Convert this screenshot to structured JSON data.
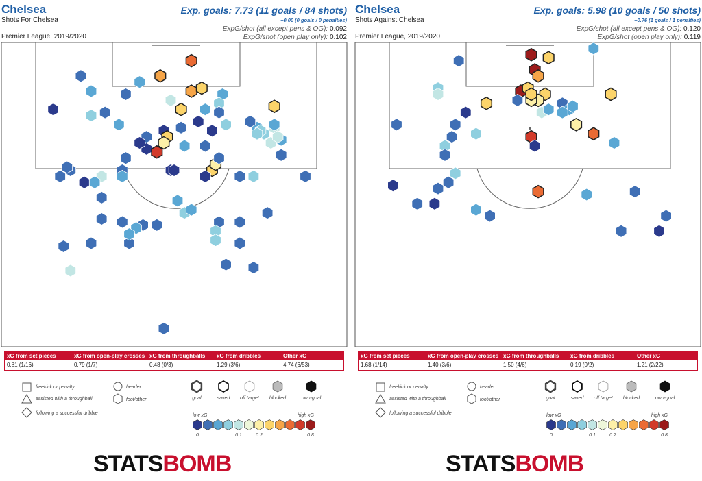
{
  "panels": [
    {
      "team": "Chelsea",
      "subtitle": "Shots For Chelsea",
      "competition": "Premier League, 2019/2020",
      "xg_title": "Exp. goals: 7.73 (11 goals / 84 shots)",
      "xg_sub": "+0.00 (0 goals / 0 penalties)",
      "line1_label": "ExpG/shot (all except pens & OG):",
      "line1_value": "0.092",
      "line2_label": "ExpG/shot (open play only):",
      "line2_value": "0.102",
      "breakdown": [
        {
          "label": "xG from set pieces",
          "value": "0.81 (1/16)"
        },
        {
          "label": "xG from open-play crosses",
          "value": "0.79 (1/7)"
        },
        {
          "label": "xG from throughballs",
          "value": "0.48 (0/3)"
        },
        {
          "label": "xG from dribbles",
          "value": "1.29 (3/6)"
        },
        {
          "label": "Other xG",
          "value": "4.74 (6/53)"
        }
      ]
    },
    {
      "team": "Chelsea",
      "subtitle": "Shots Against Chelsea",
      "competition": "Premier League, 2019/2020",
      "xg_title": "Exp. goals: 5.98 (10 goals / 50 shots)",
      "xg_sub": "+0.76 (1 goals / 1 penalties)",
      "line1_label": "ExpG/shot (all except pens & OG):",
      "line1_value": "0.120",
      "line2_label": "ExpG/shot (open play only):",
      "line2_value": "0.119",
      "breakdown": [
        {
          "label": "xG from set pieces",
          "value": "1.68 (1/14)"
        },
        {
          "label": "xG from open-play crosses",
          "value": "1.40 (3/6)"
        },
        {
          "label": "xG from throughballs",
          "value": "1.50 (4/6)"
        },
        {
          "label": "xG from dribbles",
          "value": "0.19 (0/2)"
        },
        {
          "label": "Other xG",
          "value": "1.21 (2/22)"
        }
      ]
    }
  ],
  "legend": {
    "shapes": [
      "freekick or penalty",
      "assisted with a throughball",
      "following a successful dribble"
    ],
    "body": [
      "header",
      "foot/other"
    ],
    "outcomes": [
      "goal",
      "saved",
      "off target",
      "blocked",
      "own-goal"
    ],
    "low_label": "low xG",
    "high_label": "high xG",
    "ticks": [
      "0",
      "0.1",
      "0.2",
      "0.8"
    ]
  },
  "colors": {
    "accent": "#1f5fa6",
    "bar_red": "#c8102e",
    "scale": [
      "#2b3a8c",
      "#3f6fb5",
      "#5aa7d4",
      "#8fcfdf",
      "#c2e6e4",
      "#eef7da",
      "#fdf0a8",
      "#fcd46a",
      "#f6a548",
      "#ea6b34",
      "#d23a2a",
      "#9c1b1b"
    ]
  },
  "logo": {
    "part1": "STATS",
    "part2": "BOMB"
  },
  "chart_data": [
    {
      "type": "scatter",
      "title": "Shots For Chelsea",
      "xlabel": "",
      "ylabel": "",
      "xlim": [
        0,
        100
      ],
      "ylim": [
        0,
        100
      ],
      "points": [
        {
          "x": 23,
          "y": 11,
          "xg": 0.03
        },
        {
          "x": 26,
          "y": 16,
          "xg": 0.05
        },
        {
          "x": 15,
          "y": 22,
          "xg": 0.01
        },
        {
          "x": 36,
          "y": 17,
          "xg": 0.04
        },
        {
          "x": 40,
          "y": 13,
          "xg": 0.06
        },
        {
          "x": 46,
          "y": 11,
          "xg": 0.4
        },
        {
          "x": 55,
          "y": 6,
          "xg": 0.6
        },
        {
          "x": 55,
          "y": 16,
          "xg": 0.35
        },
        {
          "x": 58,
          "y": 15,
          "xg": 0.25
        },
        {
          "x": 64,
          "y": 17,
          "xg": 0.05
        },
        {
          "x": 59,
          "y": 22,
          "xg": 0.07
        },
        {
          "x": 63,
          "y": 20,
          "xg": 0.08
        },
        {
          "x": 49,
          "y": 19,
          "xg": 0.12
        },
        {
          "x": 52,
          "y": 22,
          "xg": 0.3
        },
        {
          "x": 30,
          "y": 23,
          "xg": 0.02
        },
        {
          "x": 26,
          "y": 24,
          "xg": 0.1
        },
        {
          "x": 34,
          "y": 27,
          "xg": 0.07
        },
        {
          "x": 57,
          "y": 26,
          "xg": 0.01
        },
        {
          "x": 61,
          "y": 29,
          "xg": 0.01
        },
        {
          "x": 47,
          "y": 29,
          "xg": 0.01
        },
        {
          "x": 48,
          "y": 31,
          "xg": 0.25
        },
        {
          "x": 52,
          "y": 28,
          "xg": 0.02
        },
        {
          "x": 42,
          "y": 31,
          "xg": 0.02
        },
        {
          "x": 53,
          "y": 34,
          "xg": 0.06
        },
        {
          "x": 42,
          "y": 35,
          "xg": 0.01
        },
        {
          "x": 45,
          "y": 36,
          "xg": 0.7
        },
        {
          "x": 40,
          "y": 33,
          "xg": 0.01
        },
        {
          "x": 47,
          "y": 33,
          "xg": 0.2
        },
        {
          "x": 36,
          "y": 38,
          "xg": 0.03
        },
        {
          "x": 35,
          "y": 42,
          "xg": 0.02
        },
        {
          "x": 61,
          "y": 42,
          "xg": 0.25
        },
        {
          "x": 62,
          "y": 40,
          "xg": 0.2
        },
        {
          "x": 49,
          "y": 42,
          "xg": 0.01
        },
        {
          "x": 50,
          "y": 42,
          "xg": 0.01
        },
        {
          "x": 59,
          "y": 44,
          "xg": 0.01
        },
        {
          "x": 63,
          "y": 38,
          "xg": 0.02
        },
        {
          "x": 29,
          "y": 44,
          "xg": 0.12
        },
        {
          "x": 35,
          "y": 44,
          "xg": 0.05
        },
        {
          "x": 17,
          "y": 44,
          "xg": 0.02
        },
        {
          "x": 20,
          "y": 42,
          "xg": 0.02
        },
        {
          "x": 24,
          "y": 46,
          "xg": 0.01
        },
        {
          "x": 27,
          "y": 46,
          "xg": 0.06
        },
        {
          "x": 29,
          "y": 51,
          "xg": 0.03
        },
        {
          "x": 51,
          "y": 52,
          "xg": 0.05
        },
        {
          "x": 53,
          "y": 56,
          "xg": 0.08
        },
        {
          "x": 55,
          "y": 55,
          "xg": 0.07
        },
        {
          "x": 77,
          "y": 56,
          "xg": 0.02
        },
        {
          "x": 63,
          "y": 59,
          "xg": 0.03
        },
        {
          "x": 69,
          "y": 44,
          "xg": 0.04
        },
        {
          "x": 73,
          "y": 44,
          "xg": 0.08
        },
        {
          "x": 88,
          "y": 44,
          "xg": 0.02
        },
        {
          "x": 74,
          "y": 28,
          "xg": 0.07
        },
        {
          "x": 76,
          "y": 30,
          "xg": 0.1
        },
        {
          "x": 79,
          "y": 28,
          "xg": 0.12
        },
        {
          "x": 79,
          "y": 27,
          "xg": 0.05
        },
        {
          "x": 75,
          "y": 29,
          "xg": 0.08
        },
        {
          "x": 78,
          "y": 33,
          "xg": 0.12
        },
        {
          "x": 81,
          "y": 32,
          "xg": 0.07
        },
        {
          "x": 74,
          "y": 30,
          "xg": 0.09
        },
        {
          "x": 72,
          "y": 26,
          "xg": 0.02
        },
        {
          "x": 79,
          "y": 21,
          "xg": 0.3
        },
        {
          "x": 63,
          "y": 23,
          "xg": 0.04
        },
        {
          "x": 65,
          "y": 27,
          "xg": 0.08
        },
        {
          "x": 80,
          "y": 31,
          "xg": 0.15
        },
        {
          "x": 81,
          "y": 37,
          "xg": 0.02
        },
        {
          "x": 59,
          "y": 34,
          "xg": 0.02
        },
        {
          "x": 29,
          "y": 58,
          "xg": 0.03
        },
        {
          "x": 35,
          "y": 59,
          "xg": 0.04
        },
        {
          "x": 41,
          "y": 60,
          "xg": 0.02
        },
        {
          "x": 45,
          "y": 60,
          "xg": 0.04
        },
        {
          "x": 39,
          "y": 61,
          "xg": 0.05
        },
        {
          "x": 37,
          "y": 66,
          "xg": 0.02
        },
        {
          "x": 37,
          "y": 63,
          "xg": 0.05
        },
        {
          "x": 26,
          "y": 66,
          "xg": 0.04
        },
        {
          "x": 18,
          "y": 67,
          "xg": 0.02
        },
        {
          "x": 20,
          "y": 75,
          "xg": 0.12
        },
        {
          "x": 65,
          "y": 73,
          "xg": 0.03
        },
        {
          "x": 69,
          "y": 66,
          "xg": 0.02
        },
        {
          "x": 73,
          "y": 74,
          "xg": 0.04
        },
        {
          "x": 62,
          "y": 62,
          "xg": 0.09
        },
        {
          "x": 62,
          "y": 65,
          "xg": 0.08
        },
        {
          "x": 69,
          "y": 59,
          "xg": 0.04
        },
        {
          "x": 47,
          "y": 94,
          "xg": 0.04
        },
        {
          "x": 19,
          "y": 41,
          "xg": 0.02
        }
      ]
    },
    {
      "type": "scatter",
      "title": "Shots Against Chelsea",
      "xlabel": "",
      "ylabel": "",
      "xlim": [
        0,
        100
      ],
      "ylim": [
        0,
        100
      ],
      "points": [
        {
          "x": 30,
          "y": 6,
          "xg": 0.04
        },
        {
          "x": 51,
          "y": 4,
          "xg": 0.99
        },
        {
          "x": 56,
          "y": 5,
          "xg": 0.3
        },
        {
          "x": 52,
          "y": 9,
          "xg": 0.8
        },
        {
          "x": 53,
          "y": 11,
          "xg": 0.35
        },
        {
          "x": 48,
          "y": 16,
          "xg": 0.99
        },
        {
          "x": 50,
          "y": 15,
          "xg": 0.3
        },
        {
          "x": 55,
          "y": 17,
          "xg": 0.25
        },
        {
          "x": 53,
          "y": 19,
          "xg": 0.2
        },
        {
          "x": 47,
          "y": 19,
          "xg": 0.04
        },
        {
          "x": 38,
          "y": 20,
          "xg": 0.25
        },
        {
          "x": 32,
          "y": 23,
          "xg": 0.01
        },
        {
          "x": 60,
          "y": 20,
          "xg": 0.04
        },
        {
          "x": 62,
          "y": 22,
          "xg": 0.06
        },
        {
          "x": 63,
          "y": 21,
          "xg": 0.07
        },
        {
          "x": 60,
          "y": 23,
          "xg": 0.06
        },
        {
          "x": 51,
          "y": 19,
          "xg": 0.2
        },
        {
          "x": 51,
          "y": 17,
          "xg": 0.25
        },
        {
          "x": 54,
          "y": 23,
          "xg": 0.12
        },
        {
          "x": 56,
          "y": 22,
          "xg": 0.07
        },
        {
          "x": 24,
          "y": 15,
          "xg": 0.1
        },
        {
          "x": 24,
          "y": 17,
          "xg": 0.12
        },
        {
          "x": 12,
          "y": 27,
          "xg": 0.02
        },
        {
          "x": 29,
          "y": 27,
          "xg": 0.04
        },
        {
          "x": 28,
          "y": 31,
          "xg": 0.02
        },
        {
          "x": 26,
          "y": 34,
          "xg": 0.08
        },
        {
          "x": 26,
          "y": 37,
          "xg": 0.04
        },
        {
          "x": 35,
          "y": 30,
          "xg": 0.08
        },
        {
          "x": 51,
          "y": 31,
          "xg": 0.7
        },
        {
          "x": 52,
          "y": 34,
          "xg": 0.01
        },
        {
          "x": 64,
          "y": 27,
          "xg": 0.2
        },
        {
          "x": 69,
          "y": 30,
          "xg": 0.5
        },
        {
          "x": 75,
          "y": 33,
          "xg": 0.07
        },
        {
          "x": 74,
          "y": 17,
          "xg": 0.25
        },
        {
          "x": 74,
          "y": 17,
          "xg": 0.25
        },
        {
          "x": 69,
          "y": 2,
          "xg": 0.06
        },
        {
          "x": 29,
          "y": 43,
          "xg": 0.08
        },
        {
          "x": 27,
          "y": 46,
          "xg": 0.03
        },
        {
          "x": 24,
          "y": 48,
          "xg": 0.03
        },
        {
          "x": 11,
          "y": 47,
          "xg": 0.01
        },
        {
          "x": 18,
          "y": 53,
          "xg": 0.02
        },
        {
          "x": 23,
          "y": 53,
          "xg": 0.01
        },
        {
          "x": 35,
          "y": 55,
          "xg": 0.06
        },
        {
          "x": 39,
          "y": 57,
          "xg": 0.02
        },
        {
          "x": 53,
          "y": 49,
          "xg": 0.5
        },
        {
          "x": 67,
          "y": 50,
          "xg": 0.06
        },
        {
          "x": 81,
          "y": 49,
          "xg": 0.02
        },
        {
          "x": 90,
          "y": 57,
          "xg": 0.04
        },
        {
          "x": 88,
          "y": 62,
          "xg": 0.01
        },
        {
          "x": 77,
          "y": 62,
          "xg": 0.02
        }
      ]
    }
  ]
}
